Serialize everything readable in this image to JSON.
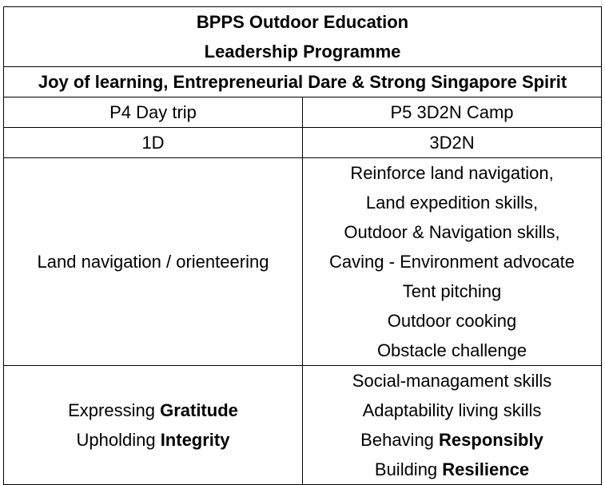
{
  "title": {
    "line1": "BPPS Outdoor Education",
    "line2": "Leadership Programme"
  },
  "motto": "Joy of learning, Entrepreneurial Dare & Strong Singapore Spirit",
  "columns": [
    {
      "name": "P4 Day trip",
      "duration": "1D",
      "activities": [
        "Land navigation / orienteering"
      ],
      "values": [
        {
          "prefix": "Expressing ",
          "bold": "Gratitude"
        },
        {
          "prefix": "Upholding ",
          "bold": "Integrity"
        }
      ]
    },
    {
      "name": "P5 3D2N Camp",
      "duration": "3D2N",
      "activities": [
        "Reinforce land navigation,",
        "Land expedition skills,",
        "Outdoor & Navigation skills,",
        "Caving - Environment advocate",
        "Tent pitching",
        "Outdoor cooking",
        "Obstacle challenge"
      ],
      "values": [
        {
          "prefix": "Social-managament skills",
          "bold": ""
        },
        {
          "prefix": "Adaptability living skills",
          "bold": ""
        },
        {
          "prefix": "Behaving ",
          "bold": "Responsibly"
        },
        {
          "prefix": "Building ",
          "bold": "Resilience"
        }
      ]
    }
  ]
}
